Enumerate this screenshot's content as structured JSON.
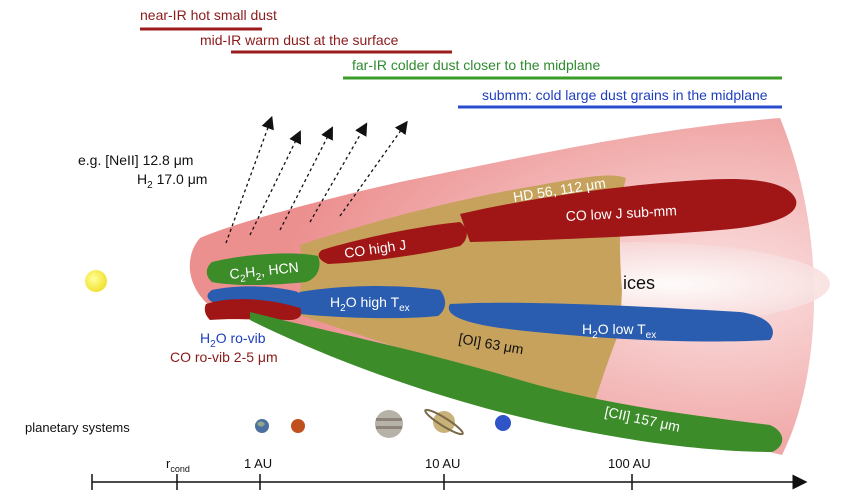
{
  "bands": {
    "near_ir": "near-IR hot small dust",
    "mid_ir": "mid-IR warm dust at the surface",
    "far_ir": "far-IR colder dust closer to the midplane",
    "submm": "submm: cold large dust grains in the midplane"
  },
  "emission_example": {
    "line1": "e.g. [NeII] 12.8 μm",
    "line2_prefix": "H",
    "line2_sub": "2",
    "line2_suffix": " 17.0 μm"
  },
  "regions": {
    "hd": "HD 56, 112 μm",
    "co_low_j": "CO low J sub-mm",
    "co_high_j": "CO high J",
    "c2h2_prefix": "C",
    "c2h2_sub1": "2",
    "c2h2_mid": "H",
    "c2h2_sub2": "2",
    "c2h2_suffix": ", HCN",
    "ices": "ices",
    "h2o_high_prefix": "H",
    "h2o_high_sub": "2",
    "h2o_high_mid": "O high T",
    "h2o_high_sub2": "ex",
    "oi": "[OI] 63 μm",
    "h2o_low_prefix": "H",
    "h2o_low_sub": "2",
    "h2o_low_mid": "O low T",
    "h2o_low_sub2": "ex",
    "cii": "[CII] 157 μm",
    "h2o_rovib_prefix": "H",
    "h2o_rovib_sub": "2",
    "h2o_rovib_suffix": "O ro-vib",
    "co_rovib": "CO ro-vib 2-5 μm"
  },
  "planetary_systems": "planetary systems",
  "axis": {
    "r_prefix": "r",
    "r_sub": "cond",
    "tick_1au": "1 AU",
    "tick_10au": "10 AU",
    "tick_100au": "100 AU"
  },
  "colors": {
    "disk_outer": "#f2a7a7",
    "band_red": "#a51c1c",
    "band_green": "#3c8c2a",
    "band_blue": "#2a5cb0",
    "band_tan": "#c8a45a",
    "star": "#f5e642"
  }
}
